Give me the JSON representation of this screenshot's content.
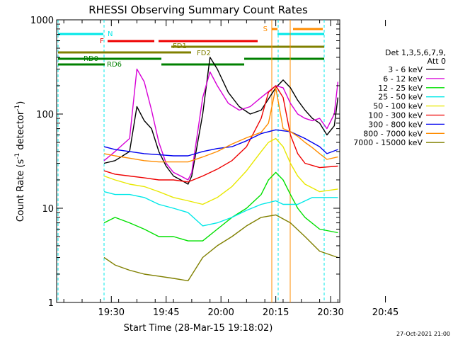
{
  "chart_data": {
    "type": "line",
    "title": "RHESSI Observing Summary Count Rates",
    "xlabel": "Start Time (28-Mar-15 19:18:02)",
    "ylabel_parts": [
      "Count Rate (s",
      "-1",
      " detector",
      "-1",
      ")"
    ],
    "yscale": "log",
    "ylim": [
      1,
      1000
    ],
    "y_ticks": [
      {
        "value": 1,
        "label": "1"
      },
      {
        "value": 10,
        "label": "10"
      },
      {
        "value": 100,
        "label": "100"
      },
      {
        "value": 1000,
        "label": "1000"
      }
    ],
    "x_range_minutes_after_19_00": [
      18.03,
      95.5
    ],
    "x_ticks": [
      {
        "minute": 33,
        "label": "19:30"
      },
      {
        "minute": 48,
        "label": "19:45"
      },
      {
        "minute": 63,
        "label": "20:00"
      },
      {
        "minute": 78,
        "label": "20:15"
      },
      {
        "minute": 93,
        "label": "20:30"
      },
      {
        "minute": 108,
        "label": "20:45"
      }
    ],
    "legend_header": [
      "Det 1,3,5,6,7,9,",
      "Att 0"
    ],
    "legend_placement": "right",
    "timestamp": "27-Oct-2021 21:00",
    "series": [
      {
        "name": "3 - 6 keV",
        "color": "#000000",
        "points": [
          [
            31,
            30
          ],
          [
            34,
            32
          ],
          [
            38,
            40
          ],
          [
            40,
            120
          ],
          [
            42,
            85
          ],
          [
            44,
            70
          ],
          [
            46,
            40
          ],
          [
            48,
            28
          ],
          [
            50,
            22
          ],
          [
            52,
            20
          ],
          [
            54,
            18
          ],
          [
            55,
            22
          ],
          [
            58,
            100
          ],
          [
            60,
            400
          ],
          [
            62,
            300
          ],
          [
            65,
            170
          ],
          [
            68,
            120
          ],
          [
            71,
            100
          ],
          [
            74,
            110
          ],
          [
            78,
            190
          ],
          [
            80,
            230
          ],
          [
            82,
            190
          ],
          [
            84,
            140
          ],
          [
            86,
            110
          ],
          [
            88,
            90
          ],
          [
            90,
            80
          ],
          [
            92,
            60
          ],
          [
            94,
            75
          ],
          [
            95,
            150
          ]
        ]
      },
      {
        "name": "6 - 12 keV",
        "color": "#d700d7",
        "points": [
          [
            31,
            32
          ],
          [
            34,
            40
          ],
          [
            38,
            55
          ],
          [
            40,
            300
          ],
          [
            42,
            220
          ],
          [
            44,
            110
          ],
          [
            46,
            50
          ],
          [
            48,
            30
          ],
          [
            50,
            24
          ],
          [
            52,
            22
          ],
          [
            54,
            20
          ],
          [
            55,
            24
          ],
          [
            58,
            150
          ],
          [
            60,
            280
          ],
          [
            62,
            200
          ],
          [
            65,
            130
          ],
          [
            68,
            110
          ],
          [
            71,
            120
          ],
          [
            74,
            150
          ],
          [
            78,
            200
          ],
          [
            80,
            190
          ],
          [
            82,
            130
          ],
          [
            84,
            100
          ],
          [
            86,
            90
          ],
          [
            88,
            85
          ],
          [
            90,
            90
          ],
          [
            92,
            70
          ],
          [
            94,
            100
          ],
          [
            95,
            220
          ]
        ]
      },
      {
        "name": "12 - 25 keV",
        "color": "#00e000",
        "points": [
          [
            31,
            7
          ],
          [
            34,
            8
          ],
          [
            38,
            7
          ],
          [
            42,
            6
          ],
          [
            46,
            5
          ],
          [
            50,
            5
          ],
          [
            54,
            4.5
          ],
          [
            58,
            4.5
          ],
          [
            62,
            6
          ],
          [
            66,
            8
          ],
          [
            70,
            10
          ],
          [
            74,
            14
          ],
          [
            76,
            20
          ],
          [
            78,
            24
          ],
          [
            80,
            20
          ],
          [
            82,
            14
          ],
          [
            84,
            10
          ],
          [
            86,
            8
          ],
          [
            90,
            6
          ],
          [
            95,
            5.5
          ]
        ]
      },
      {
        "name": "25 - 50 keV",
        "color": "#00e8e8",
        "points": [
          [
            31,
            15
          ],
          [
            34,
            14
          ],
          [
            38,
            14
          ],
          [
            42,
            13
          ],
          [
            46,
            11
          ],
          [
            50,
            10
          ],
          [
            54,
            9
          ],
          [
            58,
            6.5
          ],
          [
            62,
            7
          ],
          [
            66,
            8
          ],
          [
            70,
            9.5
          ],
          [
            74,
            11
          ],
          [
            78,
            12
          ],
          [
            80,
            11
          ],
          [
            84,
            11
          ],
          [
            88,
            13
          ],
          [
            90,
            13
          ],
          [
            95,
            13
          ]
        ]
      },
      {
        "name": "50 - 100 keV",
        "color": "#e8e800",
        "points": [
          [
            31,
            22
          ],
          [
            34,
            20
          ],
          [
            38,
            18
          ],
          [
            42,
            17
          ],
          [
            46,
            15
          ],
          [
            50,
            13
          ],
          [
            54,
            12
          ],
          [
            58,
            11
          ],
          [
            62,
            13
          ],
          [
            66,
            17
          ],
          [
            70,
            25
          ],
          [
            74,
            40
          ],
          [
            76,
            50
          ],
          [
            78,
            55
          ],
          [
            80,
            45
          ],
          [
            82,
            30
          ],
          [
            84,
            22
          ],
          [
            86,
            18
          ],
          [
            90,
            15
          ],
          [
            95,
            16
          ]
        ]
      },
      {
        "name": "100 - 300 keV",
        "color": "#ee0000",
        "points": [
          [
            31,
            25
          ],
          [
            34,
            23
          ],
          [
            38,
            22
          ],
          [
            42,
            21
          ],
          [
            46,
            20
          ],
          [
            50,
            20
          ],
          [
            54,
            19
          ],
          [
            58,
            22
          ],
          [
            62,
            26
          ],
          [
            66,
            32
          ],
          [
            70,
            45
          ],
          [
            74,
            90
          ],
          [
            76,
            170
          ],
          [
            78,
            200
          ],
          [
            80,
            150
          ],
          [
            82,
            60
          ],
          [
            84,
            38
          ],
          [
            86,
            30
          ],
          [
            90,
            27
          ],
          [
            95,
            28
          ]
        ]
      },
      {
        "name": "300 - 800 keV",
        "color": "#0000ee",
        "points": [
          [
            31,
            45
          ],
          [
            34,
            42
          ],
          [
            38,
            40
          ],
          [
            42,
            38
          ],
          [
            46,
            37
          ],
          [
            50,
            36
          ],
          [
            54,
            36
          ],
          [
            58,
            40
          ],
          [
            62,
            43
          ],
          [
            66,
            45
          ],
          [
            70,
            52
          ],
          [
            74,
            62
          ],
          [
            78,
            68
          ],
          [
            82,
            65
          ],
          [
            86,
            55
          ],
          [
            90,
            45
          ],
          [
            92,
            38
          ],
          [
            95,
            42
          ]
        ]
      },
      {
        "name": "800 - 7000 keV",
        "color": "#ff8c00",
        "points": [
          [
            31,
            38
          ],
          [
            34,
            36
          ],
          [
            38,
            34
          ],
          [
            42,
            32
          ],
          [
            46,
            31
          ],
          [
            50,
            31
          ],
          [
            54,
            31
          ],
          [
            58,
            35
          ],
          [
            62,
            40
          ],
          [
            66,
            48
          ],
          [
            70,
            56
          ],
          [
            74,
            64
          ],
          [
            76,
            80
          ],
          [
            78,
            190
          ],
          [
            80,
            70
          ],
          [
            82,
            65
          ],
          [
            84,
            58
          ],
          [
            86,
            50
          ],
          [
            88,
            44
          ],
          [
            90,
            38
          ],
          [
            92,
            33
          ],
          [
            95,
            35
          ]
        ]
      },
      {
        "name": "7000 - 15000 keV",
        "color": "#808000",
        "points": [
          [
            31,
            3
          ],
          [
            34,
            2.5
          ],
          [
            38,
            2.2
          ],
          [
            42,
            2
          ],
          [
            46,
            1.9
          ],
          [
            50,
            1.8
          ],
          [
            54,
            1.7
          ],
          [
            58,
            3
          ],
          [
            62,
            4
          ],
          [
            66,
            5
          ],
          [
            70,
            6.5
          ],
          [
            74,
            8
          ],
          [
            78,
            8.5
          ],
          [
            82,
            7
          ],
          [
            86,
            5
          ],
          [
            90,
            3.5
          ],
          [
            95,
            3
          ]
        ]
      }
    ],
    "overlays": [
      {
        "label": "N",
        "color": "#00e8e8"
      },
      {
        "label": "F",
        "color": "#ee0000"
      },
      {
        "label": "FD1",
        "color": "#808000"
      },
      {
        "label": "FD2",
        "color": "#808000"
      },
      {
        "label": "RD0",
        "color": "#008000"
      },
      {
        "label": "RD6",
        "color": "#008000"
      },
      {
        "label": "S",
        "color": "#ff8c00"
      }
    ]
  }
}
